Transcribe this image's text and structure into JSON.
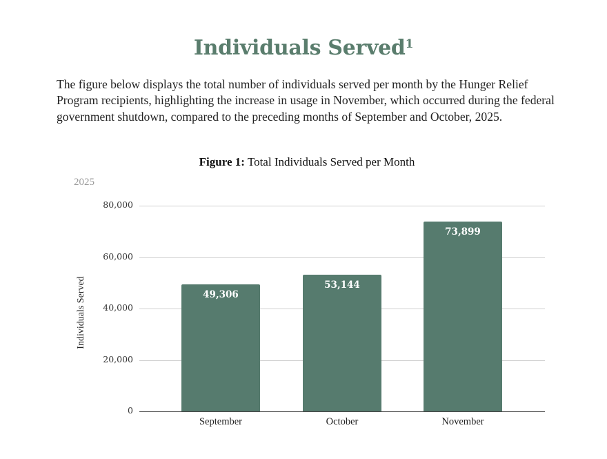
{
  "page": {
    "title": "Individuals Served",
    "title_footnote": "1",
    "intro": "The figure below displays the total number of individuals served per month by the Hunger Relief Program recipients, highlighting the increase in usage in November, which occurred during the federal government shutdown, compared to the preceding months of September and October, 2025.",
    "figure_label": "Figure 1:",
    "figure_title": "Total Individuals Served per Month",
    "year_label": "2025"
  },
  "colors": {
    "title": "#5a7d6d",
    "bar": "#567b6e",
    "gridline": "#cfcfcf"
  },
  "chart_data": {
    "type": "bar",
    "title": "Total Individuals Served per Month",
    "subtitle": "2025",
    "categories": [
      "September",
      "October",
      "November"
    ],
    "values": [
      49306,
      53144,
      73899
    ],
    "value_labels": [
      "49,306",
      "53,144",
      "73,899"
    ],
    "xlabel": "",
    "ylabel": "Individuals Served",
    "ylim": [
      0,
      80000
    ],
    "yticks": [
      0,
      20000,
      40000,
      60000,
      80000
    ],
    "ytick_labels": [
      "0",
      "20,000",
      "40,000",
      "60,000",
      "80,000"
    ],
    "grid": true,
    "legend": null
  }
}
